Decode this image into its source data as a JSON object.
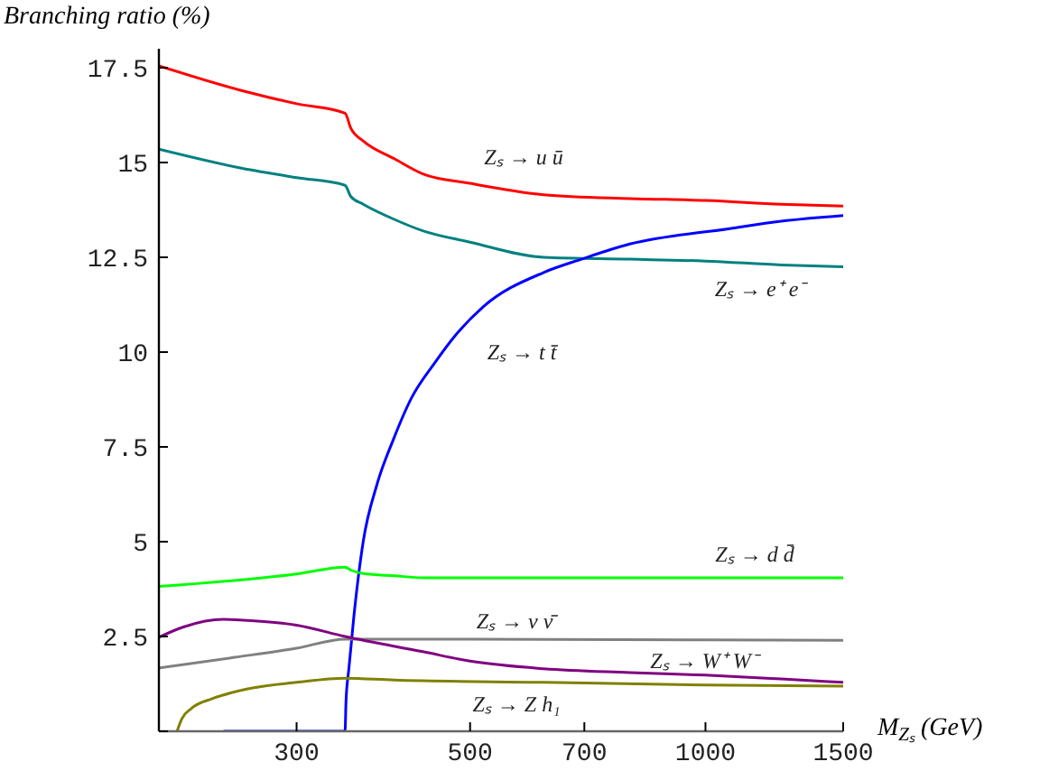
{
  "chart_data": {
    "type": "line",
    "ylabel": "Branching ratio (%)",
    "xlabel": "M$_{Zₛ}$ (GeV)",
    "log": "x",
    "xlim": [
      200,
      1500
    ],
    "ylim": [
      0,
      18
    ],
    "xticks": [
      300,
      500,
      700,
      1000,
      1500
    ],
    "yticks": [
      {
        "value": 0,
        "label": null
      },
      2.5,
      5,
      7.5,
      10,
      12.5,
      15,
      17.5
    ],
    "grid": false,
    "marker": "none",
    "line_style": "solid",
    "series": [
      {
        "name": "Zₛ → u ū",
        "color": "#ff0000",
        "x": [
          200,
          255,
          300,
          346,
          352,
          365,
          400,
          435,
          500,
          621,
          800,
          1000,
          1250,
          1500
        ],
        "values": [
          17.55,
          16.9,
          16.55,
          16.3,
          15.9,
          15.57,
          15.1,
          14.7,
          14.45,
          14.15,
          14.05,
          14.0,
          13.9,
          13.85
        ]
      },
      {
        "name": "Zₛ → e⁺ e⁻",
        "color": "#008080",
        "x": [
          200,
          255,
          300,
          346,
          352,
          365,
          400,
          435,
          500,
          621,
          800,
          1000,
          1250,
          1500
        ],
        "values": [
          15.35,
          14.85,
          14.6,
          14.4,
          14.1,
          13.9,
          13.5,
          13.2,
          12.9,
          12.5,
          12.45,
          12.4,
          12.3,
          12.25
        ]
      },
      {
        "name": "Zₛ → t t̄",
        "color": "#0000ff",
        "x": [
          242,
          346,
          347,
          350,
          355,
          365,
          380,
          399,
          421,
          450,
          477,
          520,
          621,
          694,
          800,
          1070,
          1250,
          1500
        ],
        "values": [
          0,
          0,
          0.8,
          1.67,
          3.0,
          5.0,
          6.5,
          7.7,
          8.8,
          9.7,
          10.4,
          11.2,
          12.1,
          12.45,
          12.85,
          13.25,
          13.45,
          13.6
        ]
      },
      {
        "name": "Zₛ → d d̄",
        "color": "#00ff00",
        "x": [
          200,
          300,
          346,
          352,
          365,
          400,
          435,
          500,
          1000,
          1500
        ],
        "values": [
          3.82,
          4.15,
          4.33,
          4.25,
          4.16,
          4.1,
          4.05,
          4.05,
          4.05,
          4.05
        ]
      },
      {
        "name": "Zₛ → ν ν̄",
        "color": "#808080",
        "x": [
          200,
          250,
          300,
          346,
          500,
          1000,
          1500
        ],
        "values": [
          1.67,
          1.95,
          2.19,
          2.43,
          2.43,
          2.41,
          2.4
        ]
      },
      {
        "name": "Zₛ → W⁺ W⁻",
        "color": "#800080",
        "x": [
          200,
          215,
          242,
          270,
          300,
          346,
          435,
          500,
          621,
          800,
          1000,
          1250,
          1500
        ],
        "values": [
          2.48,
          2.75,
          2.95,
          2.9,
          2.8,
          2.5,
          2.1,
          1.85,
          1.65,
          1.55,
          1.48,
          1.38,
          1.29
        ]
      },
      {
        "name": "Zₛ → Z h₁",
        "color": "#808000",
        "x": [
          211,
          214,
          220,
          234,
          260,
          300,
          346,
          400,
          621,
          1000,
          1500
        ],
        "values": [
          0,
          0.33,
          0.6,
          0.86,
          1.12,
          1.29,
          1.4,
          1.35,
          1.29,
          1.22,
          1.19
        ]
      }
    ]
  }
}
